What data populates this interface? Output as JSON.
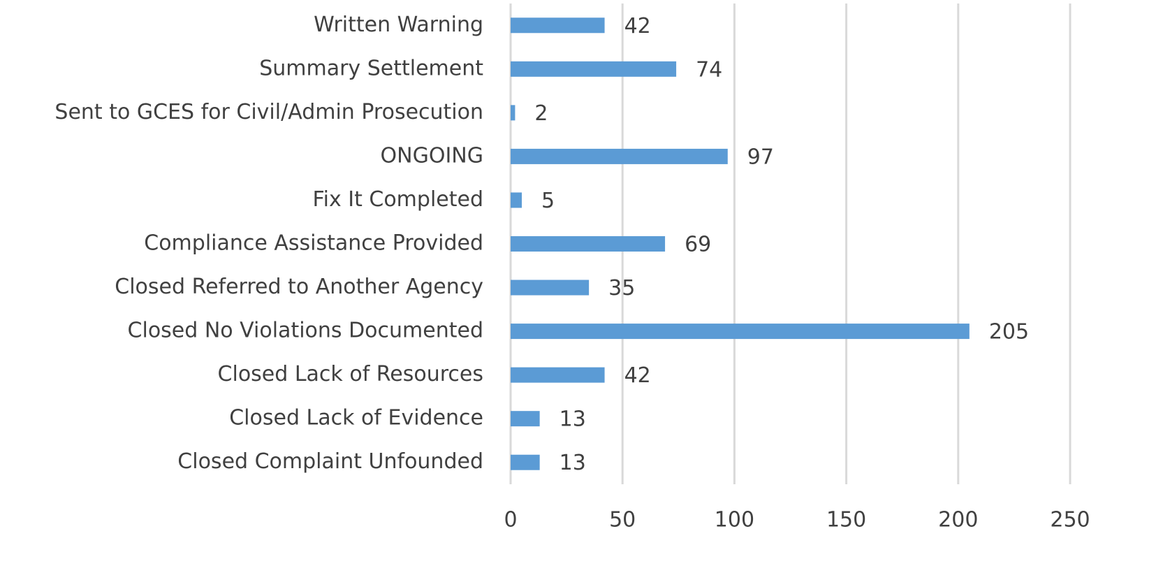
{
  "chart_data": {
    "type": "barh",
    "categories": [
      "Closed Complaint Unfounded",
      "Closed Lack of Evidence",
      "Closed Lack of Resources",
      "Closed No Violations Documented",
      "Closed Referred to Another Agency",
      "Compliance Assistance Provided",
      "Fix It Completed",
      "ONGOING",
      "Sent to GCES for Civil/Admin Prosecution",
      "Summary Settlement",
      "Written Warning"
    ],
    "values": [
      13,
      13,
      42,
      205,
      35,
      69,
      5,
      97,
      2,
      74,
      42
    ],
    "color": "#5b9bd5",
    "xlim": [
      0,
      250
    ],
    "xticks": [
      0,
      50,
      100,
      150,
      200,
      250
    ],
    "grid": true
  }
}
